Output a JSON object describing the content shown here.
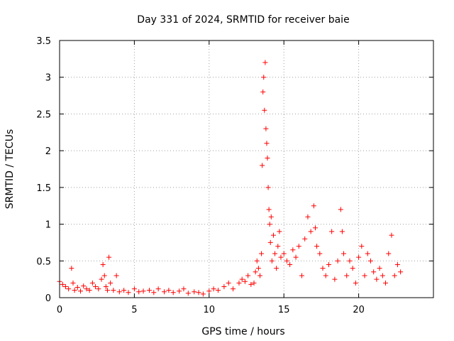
{
  "chart_data": {
    "type": "scatter",
    "title": "Day 331 of 2024, SRMTID for receiver baie",
    "xlabel": "GPS time / hours",
    "ylabel": "SRMTID / TECUs",
    "xlim": [
      0,
      25
    ],
    "ylim": [
      0,
      3.5
    ],
    "xticks": [
      0,
      5,
      10,
      15,
      20
    ],
    "xtick_labels": [
      "0",
      "5",
      "10",
      "15",
      "20"
    ],
    "yticks": [
      0,
      0.5,
      1,
      1.5,
      2,
      2.5,
      3,
      3.5
    ],
    "ytick_labels": [
      "0",
      "0.5",
      "1",
      "1.5",
      "2",
      "2.5",
      "3",
      "3.5"
    ],
    "grid": true,
    "marker": "plus",
    "series": [
      {
        "name": "SRMTID",
        "color": "#ff0000",
        "x": [
          0.0,
          0.2,
          0.4,
          0.6,
          0.8,
          0.9,
          1.0,
          1.2,
          1.4,
          1.6,
          1.8,
          2.0,
          2.2,
          2.4,
          2.6,
          2.8,
          2.9,
          3.0,
          3.1,
          3.2,
          3.3,
          3.4,
          3.6,
          3.8,
          4.0,
          4.3,
          4.6,
          5.0,
          5.3,
          5.6,
          6.0,
          6.3,
          6.6,
          7.0,
          7.3,
          7.6,
          8.0,
          8.3,
          8.6,
          9.0,
          9.3,
          9.6,
          10.0,
          10.3,
          10.6,
          11.0,
          11.3,
          11.6,
          12.0,
          12.2,
          12.4,
          12.6,
          12.8,
          13.0,
          13.1,
          13.2,
          13.3,
          13.4,
          13.5,
          13.55,
          13.6,
          13.65,
          13.7,
          13.75,
          13.8,
          13.85,
          13.9,
          13.95,
          14.0,
          14.05,
          14.1,
          14.15,
          14.2,
          14.3,
          14.4,
          14.5,
          14.6,
          14.7,
          14.8,
          15.0,
          15.2,
          15.4,
          15.6,
          15.8,
          16.0,
          16.2,
          16.4,
          16.6,
          16.8,
          17.0,
          17.1,
          17.2,
          17.4,
          17.6,
          17.8,
          18.0,
          18.2,
          18.4,
          18.6,
          18.8,
          18.9,
          19.0,
          19.2,
          19.4,
          19.6,
          19.8,
          20.0,
          20.2,
          20.4,
          20.6,
          20.8,
          21.0,
          21.2,
          21.4,
          21.6,
          21.8,
          22.0,
          22.2,
          22.4,
          22.6,
          22.8
        ],
        "y": [
          0.22,
          0.18,
          0.15,
          0.12,
          0.4,
          0.2,
          0.1,
          0.14,
          0.09,
          0.16,
          0.12,
          0.1,
          0.2,
          0.15,
          0.12,
          0.25,
          0.45,
          0.3,
          0.15,
          0.1,
          0.55,
          0.2,
          0.1,
          0.3,
          0.08,
          0.1,
          0.07,
          0.12,
          0.08,
          0.09,
          0.1,
          0.07,
          0.12,
          0.08,
          0.1,
          0.07,
          0.09,
          0.12,
          0.06,
          0.08,
          0.07,
          0.05,
          0.09,
          0.12,
          0.1,
          0.15,
          0.2,
          0.12,
          0.2,
          0.25,
          0.22,
          0.3,
          0.18,
          0.2,
          0.35,
          0.5,
          0.4,
          0.3,
          0.6,
          1.8,
          2.8,
          3.0,
          2.55,
          3.2,
          2.3,
          2.1,
          1.9,
          1.5,
          1.2,
          1.0,
          0.75,
          1.1,
          0.5,
          0.85,
          0.6,
          0.4,
          0.7,
          0.9,
          0.55,
          0.6,
          0.5,
          0.45,
          0.65,
          0.55,
          0.7,
          0.3,
          0.8,
          1.1,
          0.9,
          1.25,
          0.95,
          0.7,
          0.6,
          0.4,
          0.3,
          0.45,
          0.9,
          0.25,
          0.5,
          1.2,
          0.9,
          0.6,
          0.3,
          0.5,
          0.4,
          0.2,
          0.55,
          0.7,
          0.3,
          0.6,
          0.5,
          0.35,
          0.25,
          0.4,
          0.3,
          0.2,
          0.6,
          0.85,
          0.3,
          0.45,
          0.35
        ]
      }
    ]
  }
}
